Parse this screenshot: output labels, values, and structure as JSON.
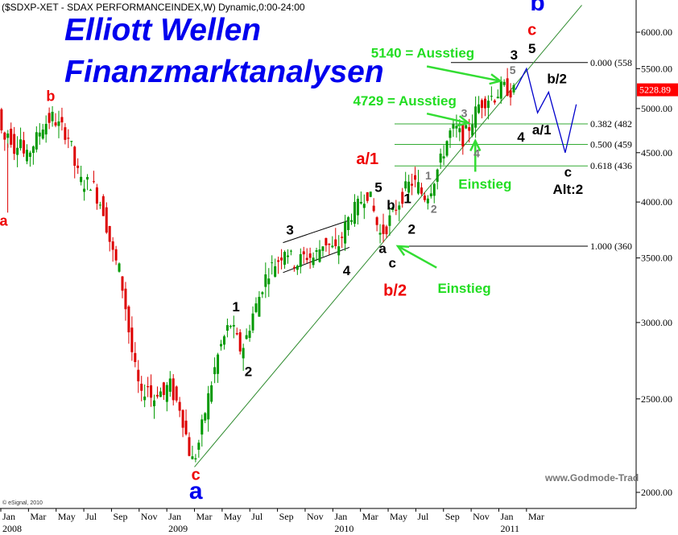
{
  "header": {
    "symbol_line": "($SDXP-XET - SDAX PERFORMANCEINDEX,W) Dynamic,0:00-24:00",
    "title_line1": "Elliott Wellen",
    "title_line2": "Finanzmarktanalysen",
    "copyright": "© eSignal, 2010",
    "watermark": "www.Godmode-Trad"
  },
  "chart_data": {
    "type": "candlestick",
    "scale": "log",
    "ylim": [
      1900,
      6400
    ],
    "y_ticks": [
      {
        "value": 2000,
        "label": "2000.00"
      },
      {
        "value": 2500,
        "label": "2500.00"
      },
      {
        "value": 3000,
        "label": "3000.00"
      },
      {
        "value": 3500,
        "label": "3500.00"
      },
      {
        "value": 4000,
        "label": "4000.00"
      },
      {
        "value": 4500,
        "label": "4500.00"
      },
      {
        "value": 5000,
        "label": "5000.00"
      },
      {
        "value": 5500,
        "label": "5500.00"
      },
      {
        "value": 6000,
        "label": "6000.00"
      }
    ],
    "x_ticks": [
      {
        "month": 0,
        "label": "Jan",
        "year": "2008"
      },
      {
        "month": 2,
        "label": "Mar"
      },
      {
        "month": 4,
        "label": "May"
      },
      {
        "month": 6,
        "label": "Jul"
      },
      {
        "month": 8,
        "label": "Sep"
      },
      {
        "month": 10,
        "label": "Nov"
      },
      {
        "month": 12,
        "label": "Jan",
        "year": "2009"
      },
      {
        "month": 14,
        "label": "Mar"
      },
      {
        "month": 16,
        "label": "May"
      },
      {
        "month": 18,
        "label": "Jul"
      },
      {
        "month": 20,
        "label": "Sep"
      },
      {
        "month": 22,
        "label": "Nov"
      },
      {
        "month": 24,
        "label": "Jan",
        "year": "2010"
      },
      {
        "month": 26,
        "label": "Mar"
      },
      {
        "month": 28,
        "label": "May"
      },
      {
        "month": 30,
        "label": "Jul"
      },
      {
        "month": 32,
        "label": "Sep"
      },
      {
        "month": 34,
        "label": "Nov"
      },
      {
        "month": 36,
        "label": "Jan",
        "year": "2011"
      },
      {
        "month": 38,
        "label": "Mar"
      }
    ],
    "last_price": {
      "value": 5228.89,
      "label": "5228.89",
      "color": "#ff0000"
    },
    "price_path": [
      [
        0,
        5050
      ],
      [
        0.4,
        4600
      ],
      [
        0.8,
        4750
      ],
      [
        1.2,
        4550
      ],
      [
        1.6,
        4700
      ],
      [
        2.0,
        4400
      ],
      [
        2.4,
        4550
      ],
      [
        2.8,
        4650
      ],
      [
        3.2,
        4800
      ],
      [
        3.6,
        4850
      ],
      [
        4.0,
        4900
      ],
      [
        4.4,
        4800
      ],
      [
        4.8,
        4750
      ],
      [
        5.2,
        4650
      ],
      [
        5.6,
        4350
      ],
      [
        6.0,
        4200
      ],
      [
        6.4,
        4180
      ],
      [
        6.8,
        4200
      ],
      [
        7.2,
        4050
      ],
      [
        7.6,
        3950
      ],
      [
        8.0,
        3700
      ],
      [
        8.4,
        3500
      ],
      [
        8.8,
        3400
      ],
      [
        9.2,
        3150
      ],
      [
        9.6,
        2850
      ],
      [
        10.0,
        2650
      ],
      [
        10.4,
        2500
      ],
      [
        10.8,
        2600
      ],
      [
        11.2,
        2480
      ],
      [
        11.6,
        2560
      ],
      [
        12.0,
        2520
      ],
      [
        12.4,
        2600
      ],
      [
        12.8,
        2500
      ],
      [
        13.2,
        2450
      ],
      [
        13.6,
        2300
      ],
      [
        14.0,
        2150
      ],
      [
        14.4,
        2200
      ],
      [
        14.8,
        2350
      ],
      [
        15.2,
        2500
      ],
      [
        15.6,
        2650
      ],
      [
        16.0,
        2800
      ],
      [
        16.4,
        2900
      ],
      [
        16.8,
        3000
      ],
      [
        17.2,
        2900
      ],
      [
        17.6,
        2800
      ],
      [
        18.0,
        2900
      ],
      [
        18.4,
        3050
      ],
      [
        18.8,
        3150
      ],
      [
        19.2,
        3300
      ],
      [
        19.6,
        3400
      ],
      [
        20.0,
        3450
      ],
      [
        20.4,
        3500
      ],
      [
        20.8,
        3600
      ],
      [
        21.2,
        3500
      ],
      [
        21.6,
        3450
      ],
      [
        22.0,
        3500
      ],
      [
        22.4,
        3520
      ],
      [
        22.8,
        3500
      ],
      [
        23.2,
        3560
      ],
      [
        23.6,
        3650
      ],
      [
        24.0,
        3600
      ],
      [
        24.4,
        3550
      ],
      [
        24.8,
        3650
      ],
      [
        25.2,
        3800
      ],
      [
        25.6,
        3900
      ],
      [
        26.0,
        3950
      ],
      [
        26.4,
        4050
      ],
      [
        26.8,
        4100
      ],
      [
        27.2,
        3900
      ],
      [
        27.6,
        3700
      ],
      [
        28.0,
        3750
      ],
      [
        28.4,
        3850
      ],
      [
        28.8,
        3950
      ],
      [
        29.2,
        4050
      ],
      [
        29.6,
        4150
      ],
      [
        30.0,
        4200
      ],
      [
        30.4,
        4150
      ],
      [
        30.8,
        4050
      ],
      [
        31.2,
        4100
      ],
      [
        31.6,
        4250
      ],
      [
        32.0,
        4400
      ],
      [
        32.4,
        4600
      ],
      [
        32.8,
        4750
      ],
      [
        33.2,
        4750
      ],
      [
        33.6,
        4650
      ],
      [
        34.0,
        4750
      ],
      [
        34.4,
        4900
      ],
      [
        34.8,
        5050
      ],
      [
        35.2,
        5100
      ],
      [
        35.6,
        5150
      ],
      [
        36.0,
        5150
      ],
      [
        36.4,
        5250
      ],
      [
        36.8,
        5250
      ],
      [
        37.2,
        5200
      ]
    ],
    "forecast_path": [
      [
        37.2,
        5230
      ],
      [
        38.0,
        5500
      ],
      [
        38.8,
        4950
      ],
      [
        39.6,
        5200
      ],
      [
        40.8,
        4500
      ],
      [
        41.6,
        5050
      ]
    ],
    "trendline": {
      "from": [
        14.0,
        2125
      ],
      "to": [
        42,
        6400
      ]
    },
    "channel": {
      "upper": [
        [
          20.4,
          3630
        ],
        [
          25.2,
          3830
        ]
      ],
      "lower": [
        [
          20.4,
          3380
        ],
        [
          25.2,
          3590
        ]
      ]
    },
    "fib_levels": [
      {
        "label": "0.000 (558",
        "value": 5580
      },
      {
        "label": "0.382 (482",
        "value": 4820
      },
      {
        "label": "0.500 (459",
        "value": 4590
      },
      {
        "label": "0.618 (436",
        "value": 4360
      },
      {
        "label": "1.000 (360",
        "value": 3600
      }
    ],
    "annotations": [
      {
        "text": "b",
        "month": 3.6,
        "price": 5090,
        "color": "#ee0000",
        "size": 18
      },
      {
        "text": "a",
        "month": 0.2,
        "price": 3780,
        "color": "#ee0000",
        "size": 18
      },
      {
        "text": "c",
        "month": 14.1,
        "price": 2060,
        "color": "#ee0000",
        "size": 20
      },
      {
        "text": "a",
        "month": 14.1,
        "price": 1970,
        "color": "#0000ee",
        "size": 30
      },
      {
        "text": "1",
        "month": 17.0,
        "price": 3080,
        "color": "#000000",
        "size": 17
      },
      {
        "text": "2",
        "month": 17.9,
        "price": 2640,
        "color": "#000000",
        "size": 17
      },
      {
        "text": "3",
        "month": 20.9,
        "price": 3700,
        "color": "#000000",
        "size": 17
      },
      {
        "text": "4",
        "month": 25.0,
        "price": 3360,
        "color": "#000000",
        "size": 17
      },
      {
        "text": "a/1",
        "month": 26.5,
        "price": 4380,
        "color": "#ee0000",
        "size": 20
      },
      {
        "text": "5",
        "month": 27.3,
        "price": 4100,
        "color": "#000000",
        "size": 17
      },
      {
        "text": "b",
        "month": 28.2,
        "price": 3930,
        "color": "#000000",
        "size": 17
      },
      {
        "text": "a",
        "month": 27.6,
        "price": 3540,
        "color": "#000000",
        "size": 17
      },
      {
        "text": "c",
        "month": 28.3,
        "price": 3420,
        "color": "#000000",
        "size": 17
      },
      {
        "text": "b/2",
        "month": 28.5,
        "price": 3200,
        "color": "#ee0000",
        "size": 20
      },
      {
        "text": "1",
        "month": 29.4,
        "price": 3990,
        "color": "#000000",
        "size": 17
      },
      {
        "text": "2",
        "month": 29.7,
        "price": 3710,
        "color": "#000000",
        "size": 17
      },
      {
        "text": "1",
        "month": 30.9,
        "price": 4220,
        "color": "#777777",
        "size": 14
      },
      {
        "text": "2",
        "month": 31.3,
        "price": 3900,
        "color": "#777777",
        "size": 14
      },
      {
        "text": "3",
        "month": 33.5,
        "price": 4900,
        "color": "#777777",
        "size": 14
      },
      {
        "text": "4",
        "month": 34.4,
        "price": 4450,
        "color": "#777777",
        "size": 14
      },
      {
        "text": "5",
        "month": 37.0,
        "price": 5430,
        "color": "#777777",
        "size": 14
      },
      {
        "text": "3",
        "month": 37.1,
        "price": 5620,
        "color": "#000000",
        "size": 17
      },
      {
        "text": "5",
        "month": 38.4,
        "price": 5710,
        "color": "#000000",
        "size": 17
      },
      {
        "text": "c",
        "month": 38.4,
        "price": 5960,
        "color": "#ee0000",
        "size": 20
      },
      {
        "text": "b",
        "month": 38.8,
        "price": 6320,
        "color": "#0000ee",
        "size": 30
      },
      {
        "text": "b/2",
        "month": 40.2,
        "price": 5310,
        "color": "#000000",
        "size": 17
      },
      {
        "text": "a/1",
        "month": 39.1,
        "price": 4700,
        "color": "#000000",
        "size": 17
      },
      {
        "text": "4",
        "month": 37.6,
        "price": 4620,
        "color": "#000000",
        "size": 17
      },
      {
        "text": "c",
        "month": 41.0,
        "price": 4250,
        "color": "#000000",
        "size": 17
      },
      {
        "text": "Alt:2",
        "month": 41.0,
        "price": 4080,
        "color": "#000000",
        "size": 17
      }
    ],
    "green_labels": [
      {
        "text": "5140 = Ausstieg",
        "month": 30.5,
        "price": 5650
      },
      {
        "text": "4729 = Ausstieg",
        "month": 29.2,
        "price": 5040
      },
      {
        "text": "Einstieg",
        "month": 35.0,
        "price": 4130
      },
      {
        "text": "Einstieg",
        "month": 33.5,
        "price": 3220
      }
    ],
    "green_arrows": [
      {
        "from": [
          30.8,
          5530
        ],
        "to": [
          36.1,
          5340
        ]
      },
      {
        "from": [
          30.8,
          4940
        ],
        "to": [
          33.8,
          4830
        ]
      },
      {
        "from": [
          34.3,
          4300
        ],
        "to": [
          34.3,
          4630
        ]
      },
      {
        "from": [
          31.5,
          3420
        ],
        "to": [
          28.7,
          3600
        ]
      }
    ]
  }
}
